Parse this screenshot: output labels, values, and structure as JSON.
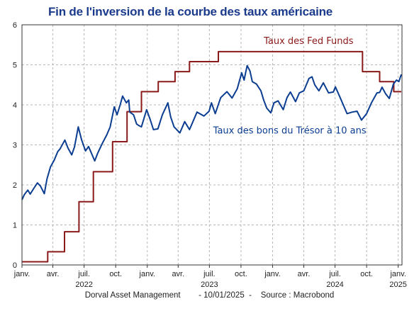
{
  "chart_data": {
    "type": "line",
    "title": "Fin de l'inversion de la courbe des taux américaine",
    "ylim": [
      0,
      6
    ],
    "yticks": [
      0,
      1,
      2,
      3,
      4,
      5,
      6
    ],
    "xlim": [
      "2022-01-01",
      "2025-01-12"
    ],
    "xticks": [
      {
        "date": "2022-01-01",
        "label": "janv."
      },
      {
        "date": "2022-04-01",
        "label": "avr."
      },
      {
        "date": "2022-07-01",
        "label": "juil."
      },
      {
        "date": "2022-10-01",
        "label": "oct."
      },
      {
        "date": "2023-01-01",
        "label": "janv."
      },
      {
        "date": "2023-04-01",
        "label": "avr."
      },
      {
        "date": "2023-07-01",
        "label": "juil."
      },
      {
        "date": "2023-10-01",
        "label": "oct."
      },
      {
        "date": "2024-01-01",
        "label": "janv."
      },
      {
        "date": "2024-04-01",
        "label": "avr."
      },
      {
        "date": "2024-07-01",
        "label": "juil."
      },
      {
        "date": "2024-10-01",
        "label": "oct."
      },
      {
        "date": "2025-01-01",
        "label": "janv."
      }
    ],
    "year_labels": [
      {
        "date": "2022-07-01",
        "label": "2022"
      },
      {
        "date": "2023-07-01",
        "label": "2023"
      },
      {
        "date": "2024-07-01",
        "label": "2024"
      },
      {
        "date": "2025-01-01",
        "label": "2025"
      }
    ],
    "grid": true,
    "series": [
      {
        "name": "Taux des Fed Funds",
        "color": "#8b1a1a",
        "step": true,
        "points": [
          [
            "2022-01-01",
            0.08
          ],
          [
            "2022-03-17",
            0.33
          ],
          [
            "2022-05-05",
            0.83
          ],
          [
            "2022-06-16",
            1.58
          ],
          [
            "2022-07-28",
            2.33
          ],
          [
            "2022-09-22",
            3.08
          ],
          [
            "2022-11-03",
            3.83
          ],
          [
            "2022-12-15",
            4.33
          ],
          [
            "2023-02-02",
            4.58
          ],
          [
            "2023-03-23",
            4.83
          ],
          [
            "2023-05-04",
            5.08
          ],
          [
            "2023-07-27",
            5.33
          ],
          [
            "2024-09-19",
            4.83
          ],
          [
            "2024-11-08",
            4.58
          ],
          [
            "2024-12-19",
            4.33
          ],
          [
            "2025-01-10",
            4.33
          ]
        ]
      },
      {
        "name": "Taux des bons du Trésor à 10 ans",
        "color": "#0b3d91",
        "step": false,
        "points": [
          [
            "2022-01-01",
            1.63
          ],
          [
            "2022-01-08",
            1.76
          ],
          [
            "2022-01-18",
            1.87
          ],
          [
            "2022-01-25",
            1.77
          ],
          [
            "2022-02-05",
            1.92
          ],
          [
            "2022-02-15",
            2.05
          ],
          [
            "2022-02-24",
            1.97
          ],
          [
            "2022-03-07",
            1.78
          ],
          [
            "2022-03-15",
            2.15
          ],
          [
            "2022-03-25",
            2.45
          ],
          [
            "2022-04-05",
            2.62
          ],
          [
            "2022-04-15",
            2.83
          ],
          [
            "2022-04-22",
            2.9
          ],
          [
            "2022-05-06",
            3.12
          ],
          [
            "2022-05-15",
            2.92
          ],
          [
            "2022-05-26",
            2.75
          ],
          [
            "2022-06-03",
            2.95
          ],
          [
            "2022-06-14",
            3.45
          ],
          [
            "2022-06-24",
            3.12
          ],
          [
            "2022-07-05",
            2.85
          ],
          [
            "2022-07-14",
            2.96
          ],
          [
            "2022-08-01",
            2.6
          ],
          [
            "2022-08-10",
            2.8
          ],
          [
            "2022-08-22",
            3.02
          ],
          [
            "2022-09-05",
            3.25
          ],
          [
            "2022-09-15",
            3.45
          ],
          [
            "2022-09-27",
            3.95
          ],
          [
            "2022-10-05",
            3.75
          ],
          [
            "2022-10-14",
            4.0
          ],
          [
            "2022-10-21",
            4.22
          ],
          [
            "2022-11-01",
            4.05
          ],
          [
            "2022-11-08",
            4.12
          ],
          [
            "2022-11-11",
            3.82
          ],
          [
            "2022-11-22",
            3.75
          ],
          [
            "2022-12-01",
            3.52
          ],
          [
            "2022-12-08",
            3.48
          ],
          [
            "2022-12-15",
            3.45
          ],
          [
            "2022-12-30",
            3.88
          ],
          [
            "2023-01-10",
            3.62
          ],
          [
            "2023-01-19",
            3.38
          ],
          [
            "2023-02-01",
            3.4
          ],
          [
            "2023-02-14",
            3.75
          ],
          [
            "2023-03-02",
            4.05
          ],
          [
            "2023-03-10",
            3.7
          ],
          [
            "2023-03-20",
            3.45
          ],
          [
            "2023-04-06",
            3.3
          ],
          [
            "2023-04-20",
            3.58
          ],
          [
            "2023-05-04",
            3.38
          ],
          [
            "2023-05-26",
            3.82
          ],
          [
            "2023-06-15",
            3.72
          ],
          [
            "2023-06-30",
            3.84
          ],
          [
            "2023-07-07",
            4.05
          ],
          [
            "2023-07-18",
            3.78
          ],
          [
            "2023-08-03",
            4.18
          ],
          [
            "2023-08-21",
            4.33
          ],
          [
            "2023-09-05",
            4.17
          ],
          [
            "2023-09-20",
            4.4
          ],
          [
            "2023-10-03",
            4.8
          ],
          [
            "2023-10-10",
            4.62
          ],
          [
            "2023-10-19",
            4.98
          ],
          [
            "2023-10-27",
            4.85
          ],
          [
            "2023-11-03",
            4.58
          ],
          [
            "2023-11-15",
            4.52
          ],
          [
            "2023-11-28",
            4.35
          ],
          [
            "2023-12-06",
            4.12
          ],
          [
            "2023-12-15",
            3.92
          ],
          [
            "2023-12-27",
            3.8
          ],
          [
            "2024-01-05",
            4.05
          ],
          [
            "2024-01-17",
            4.1
          ],
          [
            "2024-02-01",
            3.88
          ],
          [
            "2024-02-12",
            4.18
          ],
          [
            "2024-02-22",
            4.32
          ],
          [
            "2024-03-08",
            4.08
          ],
          [
            "2024-03-19",
            4.3
          ],
          [
            "2024-04-01",
            4.35
          ],
          [
            "2024-04-16",
            4.66
          ],
          [
            "2024-04-25",
            4.7
          ],
          [
            "2024-05-03",
            4.5
          ],
          [
            "2024-05-15",
            4.35
          ],
          [
            "2024-05-28",
            4.55
          ],
          [
            "2024-06-12",
            4.3
          ],
          [
            "2024-06-26",
            4.32
          ],
          [
            "2024-07-02",
            4.45
          ],
          [
            "2024-07-16",
            4.18
          ],
          [
            "2024-08-05",
            3.78
          ],
          [
            "2024-08-20",
            3.82
          ],
          [
            "2024-09-03",
            3.84
          ],
          [
            "2024-09-16",
            3.62
          ],
          [
            "2024-10-01",
            3.78
          ],
          [
            "2024-10-15",
            4.05
          ],
          [
            "2024-10-31",
            4.3
          ],
          [
            "2024-11-08",
            4.31
          ],
          [
            "2024-11-15",
            4.44
          ],
          [
            "2024-11-25",
            4.28
          ],
          [
            "2024-12-06",
            4.16
          ],
          [
            "2024-12-18",
            4.52
          ],
          [
            "2024-12-27",
            4.62
          ],
          [
            "2025-01-03",
            4.58
          ],
          [
            "2025-01-10",
            4.76
          ]
        ]
      }
    ],
    "annotations": [
      {
        "text": "Taux des Fed Funds",
        "series": 0
      },
      {
        "text": "Taux des bons du Trésor à 10 ans",
        "series": 1
      }
    ]
  },
  "footer": {
    "source_line": "Dorval Asset Management        - 10/01/2025  -    Source : Macrobond"
  }
}
